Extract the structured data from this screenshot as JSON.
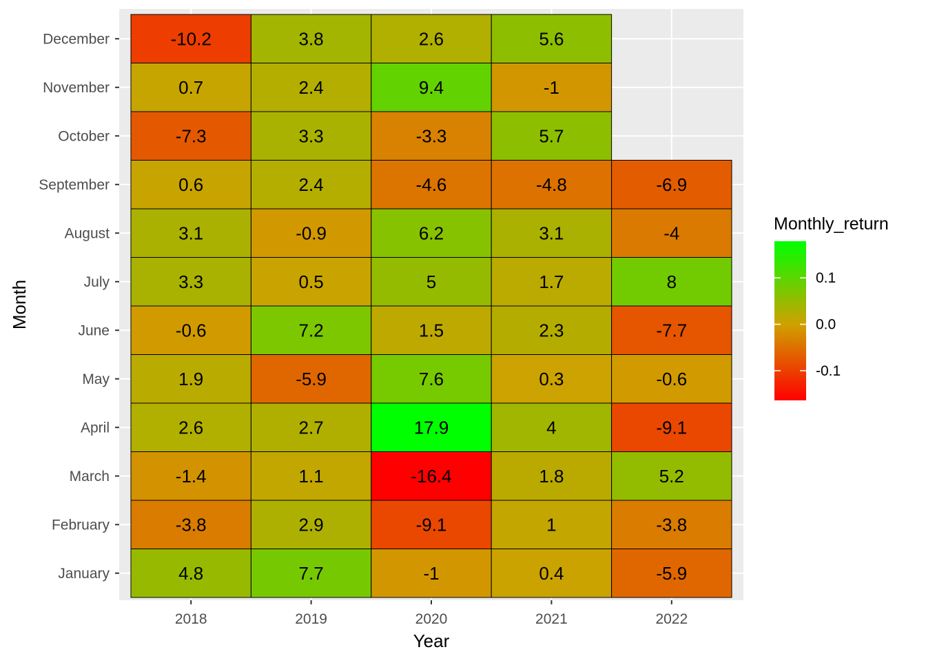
{
  "chart_data": {
    "type": "heatmap",
    "title": "",
    "xlabel": "Year",
    "ylabel": "Month",
    "x": [
      "2018",
      "2019",
      "2020",
      "2021",
      "2022"
    ],
    "y": [
      "January",
      "February",
      "March",
      "April",
      "May",
      "June",
      "July",
      "August",
      "September",
      "October",
      "November",
      "December"
    ],
    "values": [
      [
        4.8,
        7.7,
        -1,
        0.4,
        -5.9
      ],
      [
        -3.8,
        2.9,
        -9.1,
        1,
        -3.8
      ],
      [
        -1.4,
        1.1,
        -16.4,
        1.8,
        5.2
      ],
      [
        2.6,
        2.7,
        17.9,
        4,
        -9.1
      ],
      [
        1.9,
        -5.9,
        7.6,
        0.3,
        -0.6
      ],
      [
        -0.6,
        7.2,
        1.5,
        2.3,
        -7.7
      ],
      [
        3.3,
        0.5,
        5,
        1.7,
        8
      ],
      [
        3.1,
        -0.9,
        6.2,
        3.1,
        -4
      ],
      [
        0.6,
        2.4,
        -4.6,
        -4.8,
        -6.9
      ],
      [
        -7.3,
        3.3,
        -3.3,
        5.7,
        null
      ],
      [
        0.7,
        2.4,
        9.4,
        -1,
        null
      ],
      [
        -10.2,
        3.8,
        2.6,
        5.6,
        null
      ]
    ],
    "legend": {
      "title": "Monthly_return",
      "ticks": [
        0.1,
        0.0,
        -0.1
      ],
      "tick_labels": [
        "0.1",
        "0.0",
        "-0.1"
      ],
      "range": [
        -0.164,
        0.179
      ],
      "position": "right"
    },
    "colors": {
      "low": "#ff0000",
      "mid": "#cfa100",
      "high": "#00ff00",
      "panel_background": "#ebebeb",
      "grid": "#ffffff",
      "tile_border": "#000000"
    },
    "grid": true
  }
}
